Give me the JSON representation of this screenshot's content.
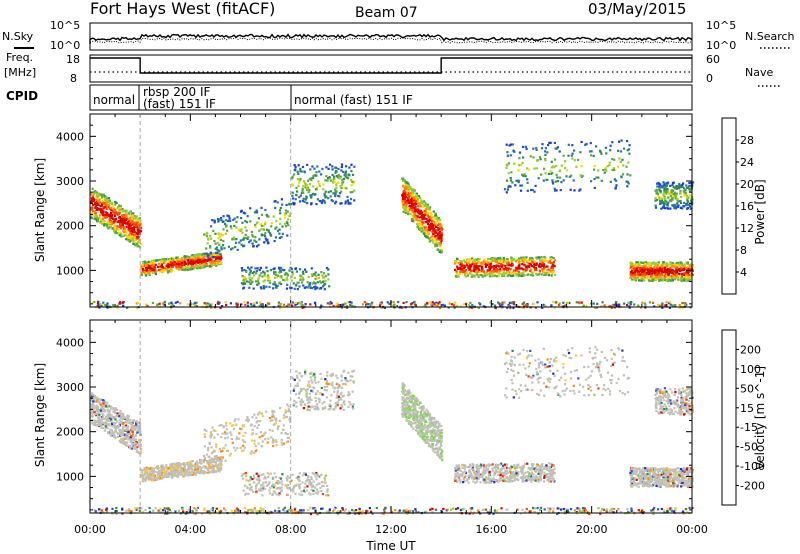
{
  "header": {
    "station": "Fort Hays West (fitACF)",
    "beam": "Beam 07",
    "date": "03/May/2015"
  },
  "side_labels": {
    "nsky": "N.Sky",
    "freq_line1": "Freq.",
    "freq_line2": "[MHz]",
    "cpid": "CPID",
    "nsearch": "N.Search",
    "nave": "Nave"
  },
  "strip_ticks": {
    "noise_left": [
      "10^5",
      "10^0"
    ],
    "noise_right": [
      "10^5",
      "10^0"
    ],
    "freq_left": [
      "18",
      "8"
    ],
    "nave_right": [
      "60",
      "0"
    ]
  },
  "cpid_labels": [
    "normal",
    "rbsp 200 IF",
    "(fast) 151 IF",
    "normal (fast) 151 IF"
  ],
  "colors": {
    "power_scale": [
      "#1f30e0",
      "#1a4fd0",
      "#2a70b0",
      "#2e8b57",
      "#5aaa3c",
      "#9acd32",
      "#ffd700",
      "#ff8c00",
      "#ff4500",
      "#e00000"
    ],
    "velocity_scale": [
      "#1a2ecc",
      "#2a5ad8",
      "#2e8b57",
      "#7dd84a",
      "#c0c0b8",
      "#c8c8c0",
      "#ffcc33",
      "#ff8c00",
      "#ff4000",
      "#e00000"
    ]
  },
  "chart_data": [
    {
      "type": "heatmap",
      "panel": "power",
      "ylabel": "Slant Range [km]",
      "xlabel": "Time UT",
      "x_ticks": [
        "00:00",
        "04:00",
        "08:00",
        "12:00",
        "16:00",
        "20:00",
        "00:00"
      ],
      "y_ticks": [
        1000,
        2000,
        3000,
        4000
      ],
      "ylim": [
        180,
        4500
      ],
      "xlim_hours": [
        0,
        24
      ],
      "colorbar_label": "Power [dB]",
      "colorbar_ticks": [
        "4",
        "8",
        "12",
        "16",
        "20",
        "24",
        "28"
      ]
    },
    {
      "type": "heatmap",
      "panel": "velocity",
      "ylabel": "Slant Range [km]",
      "xlabel": "Time UT",
      "x_ticks": [
        "00:00",
        "04:00",
        "08:00",
        "12:00",
        "16:00",
        "20:00",
        "00:00"
      ],
      "y_ticks": [
        1000,
        2000,
        3000,
        4000
      ],
      "ylim": [
        180,
        4500
      ],
      "xlim_hours": [
        0,
        24
      ],
      "colorbar_label": "Velocity [m s^-1]",
      "colorbar_ticks": [
        "200",
        "100",
        "50",
        "15",
        "-15",
        "-50",
        "-100",
        "-200"
      ]
    }
  ]
}
